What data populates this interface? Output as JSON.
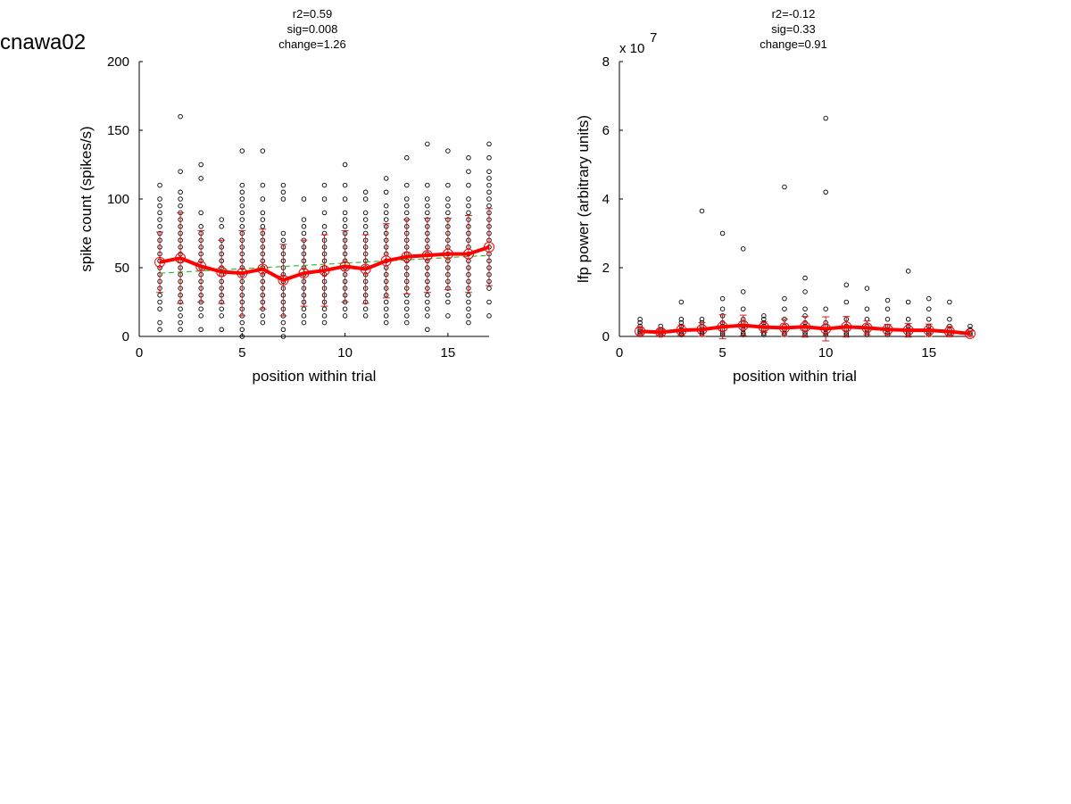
{
  "figure_title": "cnawa02",
  "chart_data": [
    {
      "type": "scatter",
      "stats": [
        "r2=0.59",
        "sig=0.008",
        "change=1.26"
      ],
      "xlabel": "position within trial",
      "ylabel": "spike count (spikes/s)",
      "xlim": [
        0,
        17
      ],
      "ylim": [
        0,
        200
      ],
      "xticks": [
        0,
        5,
        10,
        15
      ],
      "yticks": [
        0,
        50,
        100,
        150,
        200
      ],
      "multiplier_label": "",
      "grid": false,
      "colors": {
        "points": "#000000",
        "mean": "#ff0000",
        "errorbar": "#cc2222",
        "fit": "#33bb33"
      },
      "trials": [
        {
          "x": 1,
          "values": [
            5,
            10,
            20,
            25,
            30,
            35,
            40,
            45,
            50,
            55,
            60,
            65,
            70,
            75,
            80,
            85,
            90,
            95,
            100,
            110
          ]
        },
        {
          "x": 2,
          "values": [
            5,
            10,
            15,
            20,
            25,
            30,
            35,
            40,
            45,
            50,
            55,
            60,
            65,
            70,
            75,
            80,
            85,
            90,
            95,
            100,
            105,
            120,
            160
          ]
        },
        {
          "x": 3,
          "values": [
            5,
            15,
            20,
            25,
            30,
            35,
            40,
            45,
            50,
            55,
            60,
            65,
            70,
            75,
            80,
            90,
            115,
            125
          ]
        },
        {
          "x": 4,
          "values": [
            5,
            15,
            20,
            25,
            30,
            35,
            40,
            45,
            50,
            55,
            60,
            65,
            70,
            80,
            85
          ]
        },
        {
          "x": 5,
          "values": [
            0,
            5,
            10,
            15,
            20,
            25,
            30,
            35,
            40,
            45,
            50,
            55,
            60,
            65,
            70,
            75,
            80,
            85,
            90,
            95,
            100,
            105,
            110,
            135
          ]
        },
        {
          "x": 6,
          "values": [
            10,
            15,
            20,
            25,
            30,
            35,
            40,
            45,
            50,
            55,
            60,
            65,
            70,
            75,
            80,
            85,
            90,
            100,
            110,
            135
          ]
        },
        {
          "x": 7,
          "values": [
            0,
            5,
            10,
            15,
            20,
            25,
            30,
            35,
            40,
            45,
            50,
            55,
            60,
            65,
            70,
            75,
            100,
            105,
            110
          ]
        },
        {
          "x": 8,
          "values": [
            10,
            15,
            20,
            25,
            30,
            35,
            40,
            45,
            50,
            55,
            60,
            65,
            70,
            75,
            80,
            85,
            100
          ]
        },
        {
          "x": 9,
          "values": [
            10,
            15,
            20,
            25,
            30,
            35,
            40,
            45,
            50,
            55,
            60,
            65,
            70,
            75,
            80,
            90,
            100,
            110
          ]
        },
        {
          "x": 10,
          "values": [
            15,
            20,
            25,
            30,
            35,
            40,
            45,
            50,
            55,
            60,
            65,
            70,
            75,
            80,
            85,
            90,
            100,
            110,
            125
          ]
        },
        {
          "x": 11,
          "values": [
            15,
            20,
            25,
            30,
            35,
            40,
            45,
            50,
            55,
            60,
            65,
            70,
            75,
            80,
            85,
            90,
            100,
            105
          ]
        },
        {
          "x": 12,
          "values": [
            10,
            15,
            20,
            25,
            30,
            35,
            40,
            45,
            50,
            55,
            60,
            65,
            70,
            75,
            80,
            85,
            90,
            95,
            105,
            115
          ]
        },
        {
          "x": 13,
          "values": [
            10,
            15,
            20,
            25,
            30,
            35,
            40,
            45,
            50,
            55,
            60,
            65,
            70,
            75,
            80,
            85,
            90,
            95,
            100,
            110,
            130
          ]
        },
        {
          "x": 14,
          "values": [
            5,
            15,
            20,
            25,
            30,
            35,
            40,
            45,
            50,
            55,
            60,
            65,
            70,
            75,
            80,
            85,
            90,
            95,
            100,
            110,
            140
          ]
        },
        {
          "x": 15,
          "values": [
            15,
            25,
            30,
            35,
            40,
            45,
            50,
            55,
            60,
            65,
            70,
            75,
            80,
            85,
            90,
            95,
            100,
            110,
            135
          ]
        },
        {
          "x": 16,
          "values": [
            10,
            15,
            20,
            25,
            30,
            35,
            40,
            45,
            50,
            55,
            60,
            65,
            70,
            75,
            80,
            85,
            90,
            95,
            100,
            110,
            120,
            130
          ]
        },
        {
          "x": 17,
          "values": [
            15,
            25,
            35,
            40,
            45,
            50,
            55,
            60,
            65,
            70,
            75,
            80,
            85,
            90,
            95,
            100,
            105,
            110,
            115,
            120,
            130,
            140
          ]
        }
      ],
      "mean": {
        "x": [
          1,
          2,
          3,
          4,
          5,
          6,
          7,
          8,
          9,
          10,
          11,
          12,
          13,
          14,
          15,
          16,
          17
        ],
        "y": [
          54,
          57,
          51,
          47,
          46,
          49,
          41,
          46,
          48,
          51,
          49,
          55,
          58,
          59,
          60,
          60,
          65
        ],
        "err": [
          22,
          33,
          26,
          23,
          31,
          29,
          26,
          24,
          26,
          26,
          25,
          27,
          27,
          27,
          26,
          28,
          28
        ]
      },
      "fit": {
        "x": [
          1,
          17
        ],
        "y": [
          46,
          59
        ]
      }
    },
    {
      "type": "scatter",
      "stats": [
        "r2=-0.12",
        "sig=0.33",
        "change=0.91"
      ],
      "xlabel": "position within trial",
      "ylabel": "lfp power (arbitrary units)",
      "xlim": [
        0,
        17
      ],
      "ylim": [
        0,
        8
      ],
      "xticks": [
        0,
        5,
        10,
        15
      ],
      "yticks": [
        0,
        2,
        4,
        6,
        8
      ],
      "multiplier_label": "x 10",
      "multiplier_exponent": "7",
      "grid": false,
      "colors": {
        "points": "#000000",
        "mean": "#ff0000",
        "errorbar": "#cc2222"
      },
      "trials": [
        {
          "x": 1,
          "values": [
            0.05,
            0.1,
            0.15,
            0.2,
            0.3,
            0.4,
            0.5
          ]
        },
        {
          "x": 2,
          "values": [
            0.05,
            0.1,
            0.15,
            0.2,
            0.3
          ]
        },
        {
          "x": 3,
          "values": [
            0.05,
            0.1,
            0.15,
            0.2,
            0.3,
            0.4,
            0.5,
            1.0
          ]
        },
        {
          "x": 4,
          "values": [
            0.05,
            0.1,
            0.15,
            0.2,
            0.3,
            0.4,
            0.5,
            3.65
          ]
        },
        {
          "x": 5,
          "values": [
            0.05,
            0.1,
            0.2,
            0.3,
            0.4,
            0.6,
            0.8,
            1.1,
            3.0
          ]
        },
        {
          "x": 6,
          "values": [
            0.05,
            0.1,
            0.2,
            0.3,
            0.4,
            0.5,
            0.8,
            1.3,
            2.55
          ]
        },
        {
          "x": 7,
          "values": [
            0.05,
            0.1,
            0.2,
            0.3,
            0.4,
            0.5,
            0.6
          ]
        },
        {
          "x": 8,
          "values": [
            0.05,
            0.1,
            0.2,
            0.3,
            0.5,
            0.8,
            1.1,
            4.35
          ]
        },
        {
          "x": 9,
          "values": [
            0.05,
            0.1,
            0.2,
            0.3,
            0.4,
            0.6,
            0.8,
            1.3,
            1.7
          ]
        },
        {
          "x": 10,
          "values": [
            0.05,
            0.1,
            0.2,
            0.3,
            0.4,
            0.8,
            4.2,
            6.35
          ]
        },
        {
          "x": 11,
          "values": [
            0.05,
            0.1,
            0.2,
            0.3,
            0.5,
            1.0,
            1.5
          ]
        },
        {
          "x": 12,
          "values": [
            0.05,
            0.1,
            0.2,
            0.3,
            0.5,
            0.8,
            1.4
          ]
        },
        {
          "x": 13,
          "values": [
            0.05,
            0.1,
            0.2,
            0.3,
            0.5,
            0.8,
            1.05
          ]
        },
        {
          "x": 14,
          "values": [
            0.05,
            0.1,
            0.2,
            0.3,
            0.5,
            1.0,
            1.9
          ]
        },
        {
          "x": 15,
          "values": [
            0.05,
            0.1,
            0.2,
            0.3,
            0.5,
            0.8,
            1.1
          ]
        },
        {
          "x": 16,
          "values": [
            0.05,
            0.1,
            0.2,
            0.3,
            0.5,
            1.0
          ]
        },
        {
          "x": 17,
          "values": [
            0.05,
            0.1,
            0.2,
            0.3
          ]
        }
      ],
      "mean": {
        "x": [
          1,
          2,
          3,
          4,
          5,
          6,
          7,
          8,
          9,
          10,
          11,
          12,
          13,
          14,
          15,
          16,
          17
        ],
        "y": [
          0.15,
          0.12,
          0.18,
          0.2,
          0.28,
          0.32,
          0.27,
          0.25,
          0.28,
          0.22,
          0.28,
          0.25,
          0.2,
          0.18,
          0.18,
          0.14,
          0.08
        ],
        "err": [
          0.1,
          0.08,
          0.15,
          0.2,
          0.35,
          0.3,
          0.15,
          0.25,
          0.3,
          0.35,
          0.3,
          0.2,
          0.15,
          0.2,
          0.18,
          0.15,
          0.08
        ]
      }
    }
  ]
}
